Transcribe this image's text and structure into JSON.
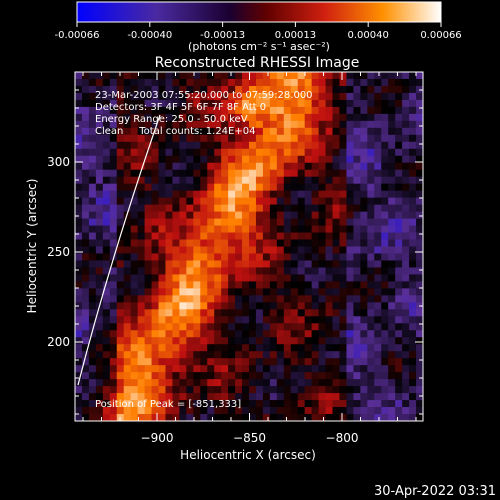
{
  "colorbar": {
    "tick_labels": [
      "-0.00066",
      "-0.00040",
      "-0.00013",
      "0.00013",
      "0.00040",
      "0.00066"
    ],
    "units_text": "(photons cm⁻² s⁻¹ asec⁻²)"
  },
  "chart_data": {
    "type": "heatmap",
    "title": "Reconstructed RHESSI Image",
    "xlabel": "Heliocentric X (arcsec)",
    "ylabel": "Heliocentric Y (arcsec)",
    "xlim": [
      -945,
      -855
    ],
    "ylim": [
      155,
      360
    ],
    "x_ticks": [
      -900,
      -850,
      -800
    ],
    "y_ticks": [
      200,
      250,
      300
    ],
    "x_tick_labels": [
      "−900",
      "−850",
      "−800"
    ],
    "y_tick_labels": [
      "200",
      "250",
      "300"
    ],
    "value_range": [
      -0.00066,
      0.00066
    ],
    "colormap": [
      "#0000ff",
      "#5a2f9a",
      "#000000",
      "#c01010",
      "#ff7f00",
      "#ffffff"
    ],
    "peak": [
      -851,
      333
    ],
    "annotations": [
      "23-Mar-2003 07:55:20.000 to 07:59:28.000",
      "Detectors: 3F 4F 5F 6F 7F 8F Att 0",
      "Energy Range: 25.0 - 50.0 keV",
      "Clean     Total counts: 1.24E+04"
    ],
    "peak_label": "Position of Peak = [-851,333]"
  },
  "footer": {
    "timestamp": "30-Apr-2022 03:31"
  }
}
